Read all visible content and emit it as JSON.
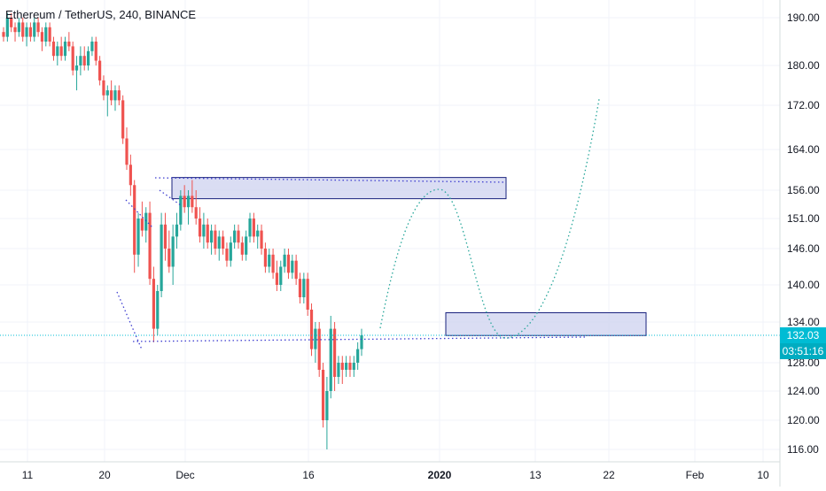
{
  "header": {
    "title": "Ethereum / TetherUS, 240, BINANCE"
  },
  "colors": {
    "up": "#26a69a",
    "down": "#ef5350",
    "price_line": "#00bcd4",
    "price_badge": "#00bcd4",
    "countdown_badge": "#00acc1",
    "box_stroke": "#1a237e",
    "box_fill": "#d1d4f0",
    "trend_line": "#3f3fd0",
    "projection": "#26a69a",
    "axis_text": "#131722"
  },
  "chart_data": {
    "type": "candlestick",
    "symbol": "Ethereum / TetherUS",
    "interval": "240",
    "exchange": "BINANCE",
    "y_axis": {
      "side": "right",
      "ticks": [
        "190.00",
        "180.00",
        "172.00",
        "164.00",
        "156.00",
        "151.00",
        "146.00",
        "140.00",
        "134.00",
        "128.00",
        "124.00",
        "120.00",
        "116.00"
      ],
      "tick_values": [
        190,
        180,
        172,
        164,
        156,
        151,
        146,
        140,
        134,
        128,
        124,
        120,
        116
      ]
    },
    "x_axis": {
      "ticks": [
        "11",
        "20",
        "Dec",
        "16",
        "2020",
        "13",
        "22",
        "Feb",
        "10"
      ],
      "bold": [
        "2020"
      ]
    },
    "last_price": "132.03",
    "last_price_value": 132.03,
    "countdown": "03:51:16",
    "candles": [
      [
        187,
        188,
        185,
        186
      ],
      [
        186,
        191,
        185,
        190
      ],
      [
        190,
        191,
        187,
        188
      ],
      [
        188,
        189,
        185,
        187
      ],
      [
        187,
        190,
        186,
        189
      ],
      [
        189,
        190,
        185,
        186
      ],
      [
        186,
        189,
        184,
        188
      ],
      [
        188,
        189,
        185,
        186
      ],
      [
        186,
        190,
        185,
        189
      ],
      [
        189,
        190,
        186,
        187
      ],
      [
        187,
        188,
        183,
        185
      ],
      [
        185,
        189,
        184,
        188
      ],
      [
        188,
        189,
        184,
        185
      ],
      [
        185,
        186,
        181,
        182
      ],
      [
        182,
        185,
        180,
        184
      ],
      [
        184,
        186,
        181,
        182
      ],
      [
        182,
        186,
        181,
        185
      ],
      [
        185,
        187,
        183,
        184
      ],
      [
        184,
        185,
        178,
        179
      ],
      [
        179,
        182,
        175,
        180
      ],
      [
        180,
        184,
        178,
        182
      ],
      [
        182,
        184,
        179,
        180
      ],
      [
        180,
        184,
        179,
        183
      ],
      [
        183,
        186,
        182,
        185
      ],
      [
        185,
        186,
        180,
        181
      ],
      [
        181,
        182,
        176,
        177
      ],
      [
        177,
        178,
        173,
        174
      ],
      [
        174,
        176,
        170,
        175
      ],
      [
        175,
        177,
        172,
        173
      ],
      [
        173,
        176,
        171,
        175
      ],
      [
        175,
        176,
        172,
        173
      ],
      [
        173,
        174,
        165,
        166
      ],
      [
        166,
        168,
        160,
        161
      ],
      [
        161,
        163,
        155,
        157
      ],
      [
        157,
        158,
        142,
        145
      ],
      [
        145,
        152,
        143,
        151
      ],
      [
        151,
        154,
        148,
        149
      ],
      [
        149,
        153,
        147,
        152
      ],
      [
        152,
        154,
        140,
        141
      ],
      [
        141,
        143,
        131,
        133
      ],
      [
        133,
        140,
        132,
        139
      ],
      [
        139,
        152,
        138,
        150
      ],
      [
        150,
        152,
        144,
        146
      ],
      [
        146,
        149,
        142,
        143
      ],
      [
        143,
        150,
        140,
        148
      ],
      [
        148,
        152,
        146,
        150
      ],
      [
        150,
        156,
        149,
        155
      ],
      [
        155,
        157,
        152,
        153
      ],
      [
        153,
        156,
        150,
        155
      ],
      [
        155,
        158,
        152,
        153
      ],
      [
        153,
        156,
        150,
        151
      ],
      [
        151,
        153,
        147,
        148
      ],
      [
        148,
        152,
        146,
        150
      ],
      [
        150,
        151,
        146,
        147
      ],
      [
        147,
        150,
        145,
        149
      ],
      [
        149,
        150,
        145,
        146
      ],
      [
        146,
        149,
        144,
        148
      ],
      [
        148,
        149,
        145,
        146
      ],
      [
        146,
        147,
        143,
        144
      ],
      [
        144,
        148,
        143,
        147
      ],
      [
        147,
        150,
        146,
        149
      ],
      [
        149,
        150,
        146,
        147
      ],
      [
        147,
        148,
        144,
        145
      ],
      [
        145,
        149,
        144,
        148
      ],
      [
        148,
        152,
        147,
        151
      ],
      [
        151,
        152,
        147,
        148
      ],
      [
        148,
        150,
        146,
        149
      ],
      [
        149,
        150,
        145,
        146
      ],
      [
        146,
        147,
        142,
        143
      ],
      [
        143,
        146,
        142,
        145
      ],
      [
        145,
        146,
        141,
        142
      ],
      [
        142,
        144,
        139,
        140
      ],
      [
        140,
        144,
        139,
        143
      ],
      [
        143,
        146,
        142,
        145
      ],
      [
        145,
        146,
        141,
        142
      ],
      [
        142,
        145,
        141,
        144
      ],
      [
        144,
        145,
        140,
        141
      ],
      [
        141,
        142,
        137,
        138
      ],
      [
        138,
        142,
        137,
        141
      ],
      [
        141,
        142,
        135,
        136
      ],
      [
        136,
        137,
        129,
        130
      ],
      [
        130,
        134,
        128,
        133
      ],
      [
        133,
        134,
        126,
        127
      ],
      [
        127,
        128,
        119,
        120
      ],
      [
        120,
        126,
        116,
        124
      ],
      [
        124,
        135,
        123,
        133
      ],
      [
        133,
        134,
        124,
        126
      ],
      [
        126,
        129,
        125,
        128
      ],
      [
        128,
        129,
        125,
        127
      ],
      [
        127,
        129,
        126,
        128
      ],
      [
        128,
        129,
        126,
        127
      ],
      [
        127,
        129,
        126,
        128
      ],
      [
        128,
        131,
        127,
        130
      ],
      [
        130,
        133,
        129,
        132.03
      ]
    ],
    "zones": [
      {
        "label": "",
        "price_top": 158.5,
        "price_bottom": 154.5
      },
      {
        "label": "",
        "price_top": 135.5,
        "price_bottom": 132.0
      }
    ],
    "projection": "dotted path up to upper zone, down to lower zone, then up"
  }
}
